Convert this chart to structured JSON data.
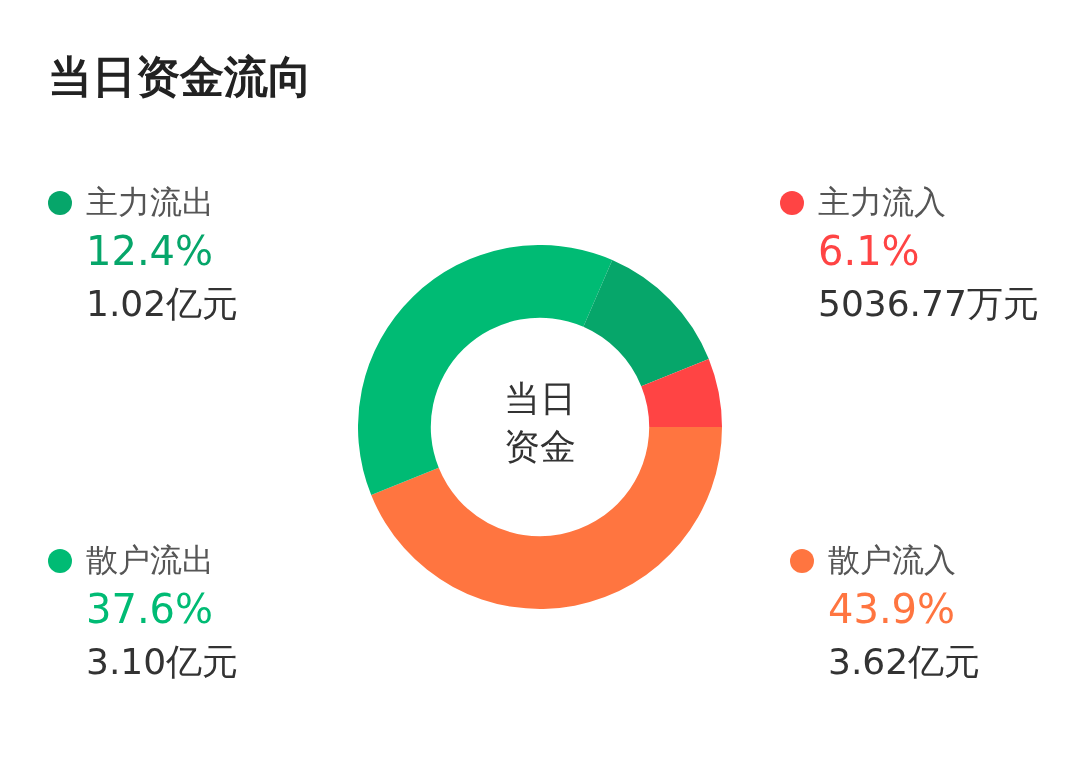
{
  "chart_data": {
    "type": "donut",
    "title": "当日资金流向",
    "categories": [
      "散户流入",
      "散户流出",
      "主力流出",
      "主力流入"
    ],
    "values": [
      43.9,
      37.6,
      12.4,
      6.1
    ],
    "colors": [
      "#ff7540",
      "#00bb74",
      "#06a66a",
      "#ff4444"
    ],
    "value_labels": [
      "43.9%",
      "37.6%",
      "12.4%",
      "6.1%"
    ],
    "annotations": [
      {
        "text": "3.62亿元",
        "x": "散户流入"
      },
      {
        "text": "3.10亿元",
        "x": "散户流出"
      },
      {
        "text": "1.02亿元",
        "x": "主力流出"
      },
      {
        "text": "5036.77万元",
        "x": "主力流入"
      },
      "当日资金"
    ],
    "legend": "left"
  }
}
